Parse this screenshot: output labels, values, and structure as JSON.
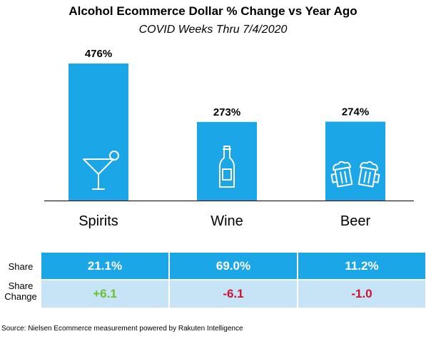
{
  "chart_data": {
    "type": "bar",
    "title": "Alcohol Ecommerce Dollar % Change vs Year Ago",
    "subtitle": "COVID Weeks Thru 7/4/2020",
    "categories": [
      "Spirits",
      "Wine",
      "Beer"
    ],
    "values": [
      476,
      273,
      274
    ],
    "value_labels": [
      "476%",
      "273%",
      "274%"
    ],
    "unit": "%",
    "ylim": [
      0,
      476
    ],
    "bar_color": "#1ba6e8",
    "icons": [
      "martini-glass-icon",
      "wine-bottle-icon",
      "beer-mugs-icon"
    ],
    "grid": false,
    "legend": "none"
  },
  "table": {
    "share_label": "Share",
    "change_label_line1": "Share",
    "change_label_line2": "Change",
    "share": [
      "21.1%",
      "69.0%",
      "11.2%"
    ],
    "change": [
      "+6.1",
      "-6.1",
      "-1.0"
    ],
    "change_colors": [
      "#6cbf2e",
      "#d0102f",
      "#d0102f"
    ],
    "header_color": "#1ba6e8",
    "row_color": "#c7e4f7"
  },
  "source": "Source: Nielsen Ecommerce measurement powered by Rakuten Intelligence"
}
